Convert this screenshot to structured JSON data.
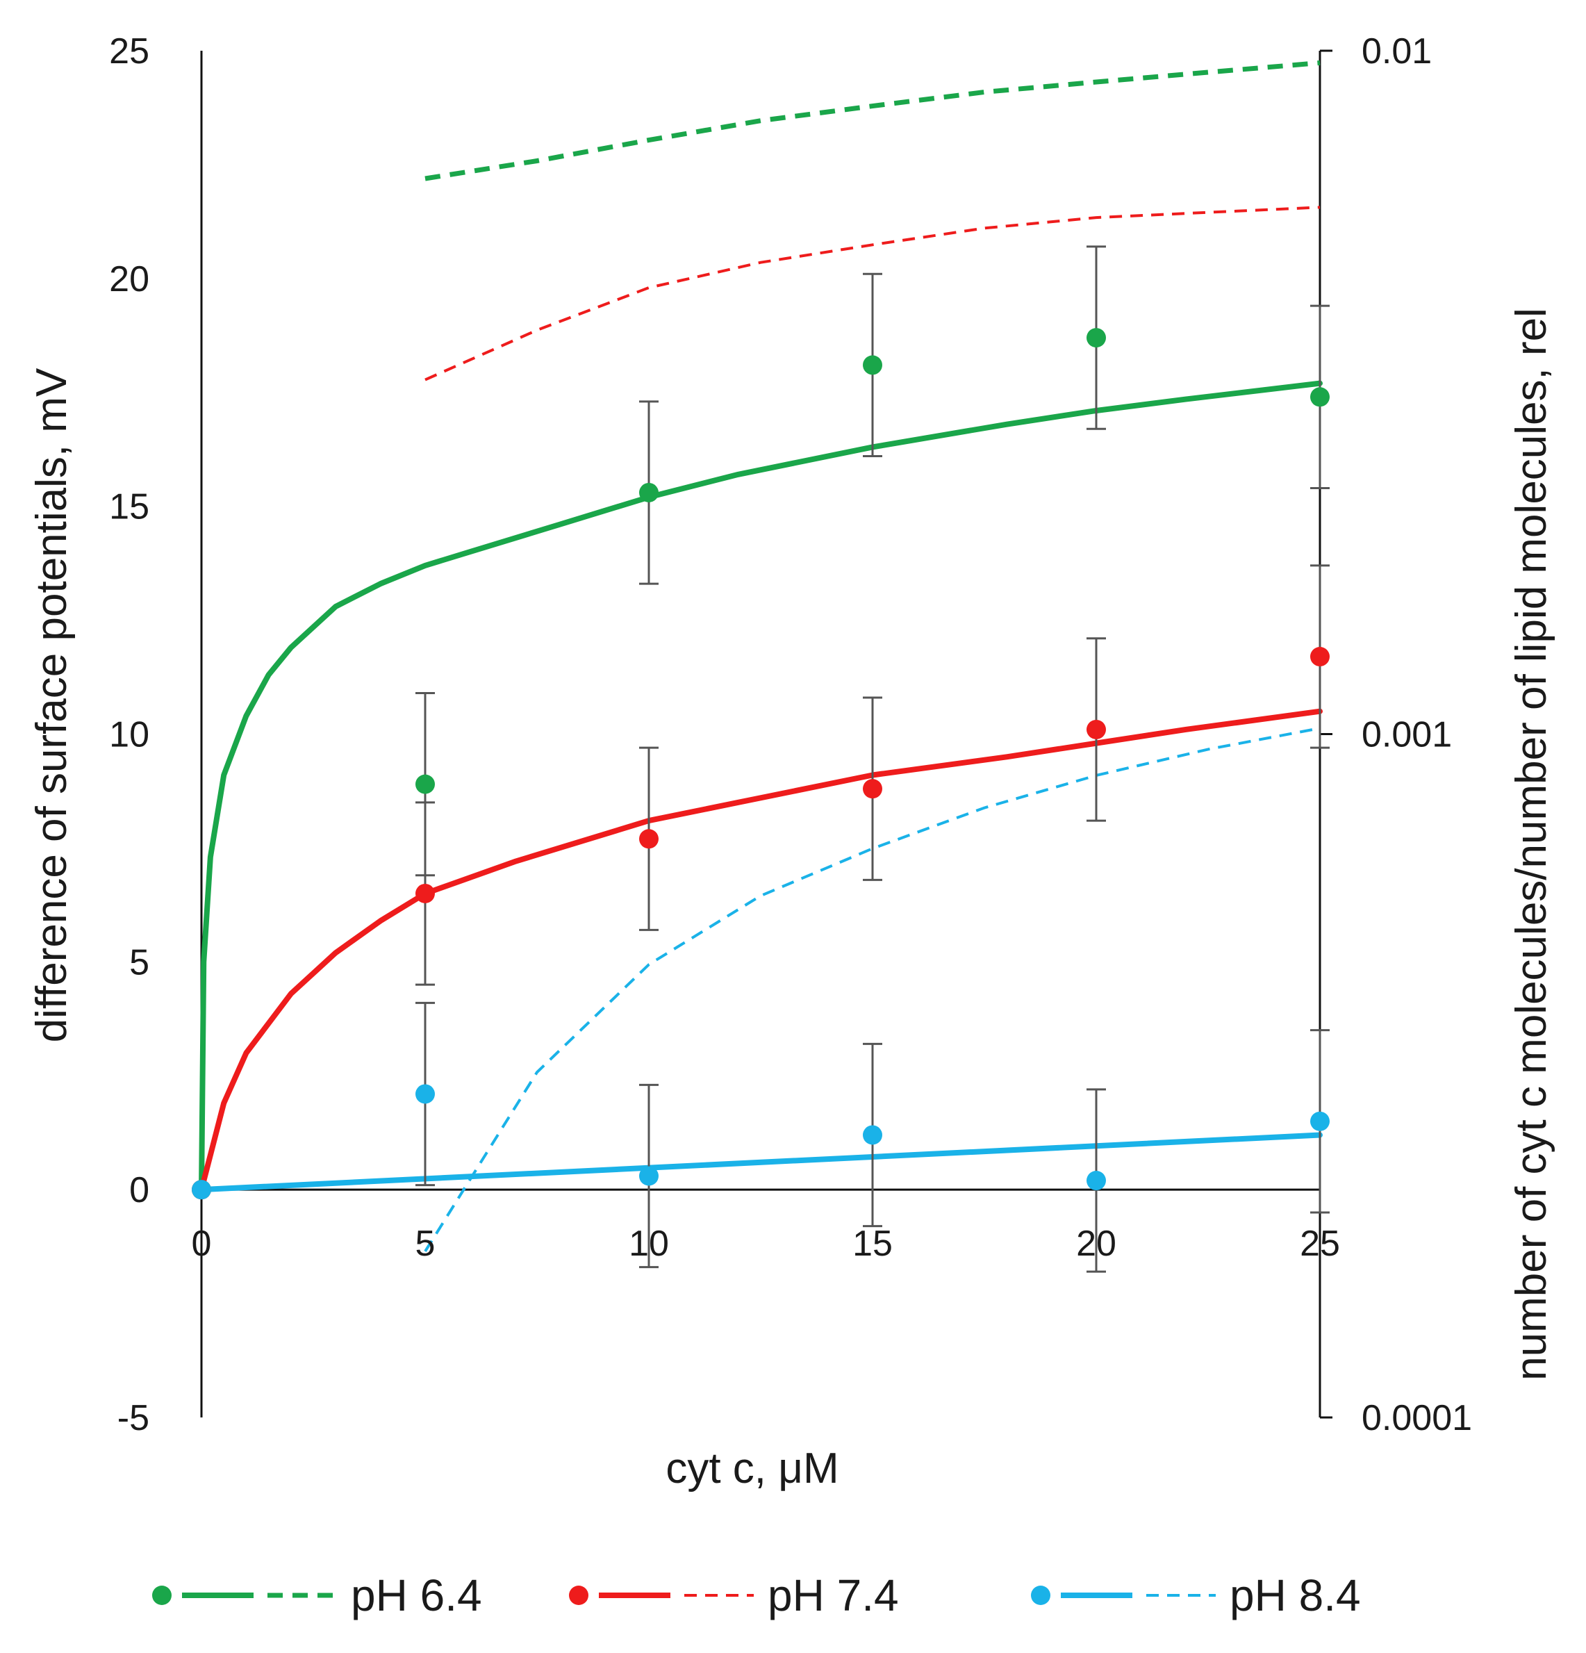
{
  "chart_data": {
    "type": "scatter",
    "xlabel": "cyt c, μM",
    "ylabel": "difference of surface potentials, mV",
    "y2label": "number of cyt c molecules/number of lipid molecules, rel",
    "xlim": [
      0,
      25
    ],
    "ylim": [
      -5,
      25
    ],
    "y2lim": [
      0.0001,
      0.01
    ],
    "y2scale": "log",
    "x_ticks": [
      "0",
      "5",
      "10",
      "15",
      "20",
      "25"
    ],
    "y_ticks": [
      "-5",
      "0",
      "5",
      "10",
      "15",
      "20",
      "25"
    ],
    "y2_ticks": [
      "0.0001",
      "0.001",
      "0.01"
    ],
    "legend_position": "bottom",
    "series": [
      {
        "name": "pH 6.4",
        "color": "#1aa64a",
        "points": {
          "x": [
            0,
            5,
            10,
            15,
            20,
            25
          ],
          "y": [
            0,
            8.9,
            15.3,
            18.1,
            18.7,
            17.4
          ],
          "err": [
            0,
            2.0,
            2.0,
            2.0,
            2.0,
            2.0
          ]
        },
        "fit": {
          "x": [
            0,
            0.05,
            0.2,
            0.5,
            1,
            1.5,
            2,
            3,
            4,
            5,
            6,
            8,
            10,
            12,
            15,
            18,
            20,
            22,
            25
          ],
          "y": [
            0,
            5.0,
            7.3,
            9.1,
            10.4,
            11.3,
            11.9,
            12.8,
            13.3,
            13.7,
            14.0,
            14.6,
            15.2,
            15.7,
            16.3,
            16.8,
            17.1,
            17.35,
            17.7
          ]
        },
        "ratio": {
          "x": [
            5,
            7.5,
            10,
            12.5,
            15,
            17.5,
            20,
            22.5,
            25
          ],
          "y": [
            0.0065,
            0.0069,
            0.0074,
            0.0079,
            0.0083,
            0.0087,
            0.009,
            0.0093,
            0.0096
          ]
        }
      },
      {
        "name": "pH 7.4",
        "color": "#ee1c1c",
        "points": {
          "x": [
            0,
            5,
            10,
            15,
            20,
            25
          ],
          "y": [
            0,
            6.5,
            7.7,
            8.8,
            10.1,
            11.7
          ],
          "err": [
            0,
            2.0,
            2.0,
            2.0,
            2.0,
            2.0
          ]
        },
        "fit": {
          "x": [
            0,
            0.5,
            1,
            2,
            3,
            4,
            5,
            7,
            10,
            12,
            15,
            18,
            20,
            22,
            25
          ],
          "y": [
            0,
            1.9,
            3.0,
            4.3,
            5.2,
            5.9,
            6.5,
            7.2,
            8.1,
            8.5,
            9.1,
            9.5,
            9.8,
            10.1,
            10.5
          ]
        },
        "ratio": {
          "x": [
            5,
            7.5,
            10,
            12.5,
            15,
            17.5,
            20,
            22.5,
            25
          ],
          "y": [
            0.0033,
            0.0039,
            0.0045,
            0.0049,
            0.0052,
            0.0055,
            0.0057,
            0.0058,
            0.0059
          ]
        }
      },
      {
        "name": "pH 8.4",
        "color": "#1ab2e8",
        "points": {
          "x": [
            0,
            5,
            10,
            15,
            20,
            25
          ],
          "y": [
            0,
            2.1,
            0.3,
            1.2,
            0.2,
            1.5
          ],
          "err": [
            0,
            2.0,
            2.0,
            2.0,
            2.0,
            2.0
          ]
        },
        "fit": {
          "x": [
            0,
            25
          ],
          "y": [
            0,
            1.2
          ]
        },
        "ratio": {
          "x": [
            5,
            7.5,
            10,
            12.5,
            15,
            17.5,
            20,
            22.5,
            25
          ],
          "y": [
            0.000175,
            0.00032,
            0.00046,
            0.00058,
            0.00068,
            0.00078,
            0.00087,
            0.00095,
            0.00102
          ]
        }
      }
    ]
  }
}
